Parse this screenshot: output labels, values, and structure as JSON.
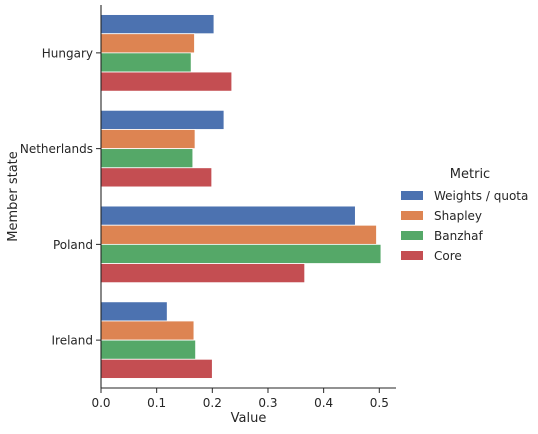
{
  "chart_data": {
    "type": "bar",
    "orientation": "horizontal",
    "categories": [
      "Hungary",
      "Netherlands",
      "Poland",
      "Ireland"
    ],
    "series": [
      {
        "name": "Weights / quota",
        "color": "#4c72b0",
        "values": [
          0.203,
          0.221,
          0.457,
          0.119
        ]
      },
      {
        "name": "Shapley",
        "color": "#dd8452",
        "values": [
          0.168,
          0.169,
          0.495,
          0.167
        ]
      },
      {
        "name": "Banzhaf",
        "color": "#55a868",
        "values": [
          0.162,
          0.165,
          0.503,
          0.17
        ]
      },
      {
        "name": "Core",
        "color": "#c44e52",
        "values": [
          0.235,
          0.199,
          0.366,
          0.2
        ]
      }
    ],
    "xlabel": "Value",
    "ylabel": "Member state",
    "xlim": [
      0,
      0.53
    ],
    "xticks": [
      "0.0",
      "0.1",
      "0.2",
      "0.3",
      "0.4",
      "0.5"
    ],
    "legend_title": "Metric",
    "legend_position": "right",
    "grid": false
  }
}
